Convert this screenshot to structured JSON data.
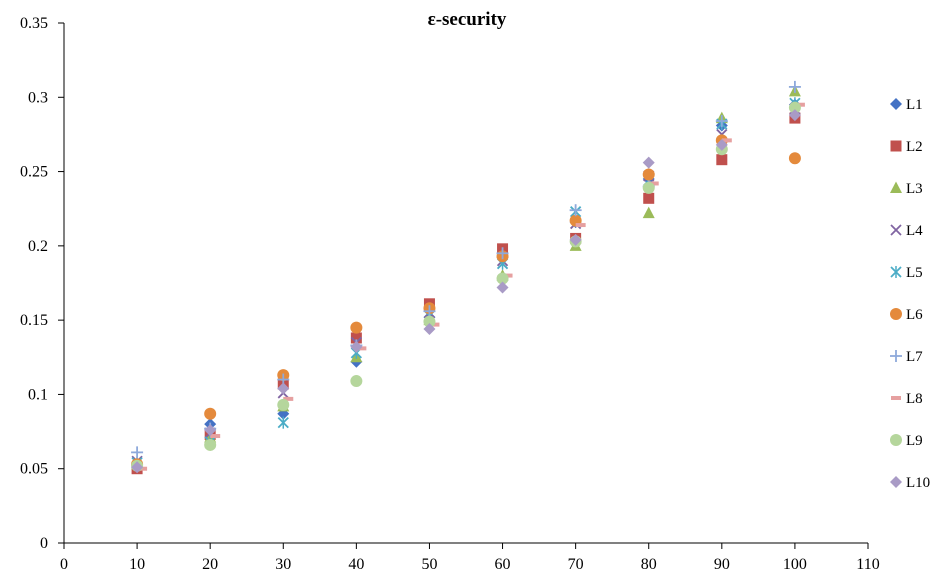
{
  "chart_data": {
    "type": "scatter",
    "title": "ε-security",
    "xlabel": "",
    "ylabel": "",
    "xlim": [
      0,
      110
    ],
    "ylim": [
      0,
      0.35
    ],
    "xticks": [
      "0",
      "10",
      "20",
      "30",
      "40",
      "50",
      "60",
      "70",
      "80",
      "90",
      "100",
      "110"
    ],
    "yticks": [
      "0",
      "0.05",
      "0.1",
      "0.15",
      "0.2",
      "0.25",
      "0.3",
      "0.35"
    ],
    "grid": false,
    "legend_position": "right",
    "x": [
      10,
      20,
      30,
      40,
      50,
      60,
      70,
      80,
      90,
      100
    ],
    "series": [
      {
        "name": "L1",
        "marker": "diamond",
        "color": "#4472C4",
        "values": [
          0.051,
          0.08,
          0.087,
          0.122,
          0.152,
          0.192,
          0.216,
          0.245,
          0.281,
          0.295
        ]
      },
      {
        "name": "L2",
        "marker": "square",
        "color": "#C0504D",
        "values": [
          0.05,
          0.073,
          0.107,
          0.138,
          0.161,
          0.198,
          0.205,
          0.232,
          0.258,
          0.286
        ]
      },
      {
        "name": "L3",
        "marker": "triangle",
        "color": "#9BBB59",
        "values": [
          0.053,
          0.071,
          0.092,
          0.125,
          0.15,
          0.18,
          0.2,
          0.222,
          0.286,
          0.304
        ]
      },
      {
        "name": "L4",
        "marker": "x",
        "color": "#8064A2",
        "values": [
          0.055,
          0.074,
          0.101,
          0.135,
          0.155,
          0.19,
          0.215,
          0.247,
          0.275,
          0.292
        ]
      },
      {
        "name": "L5",
        "marker": "star",
        "color": "#4BACC6",
        "values": [
          0.054,
          0.068,
          0.081,
          0.128,
          0.153,
          0.188,
          0.223,
          0.244,
          0.282,
          0.296
        ]
      },
      {
        "name": "L6",
        "marker": "circle",
        "color": "#E48A3C",
        "values": [
          0.053,
          0.087,
          0.113,
          0.145,
          0.158,
          0.193,
          0.217,
          0.248,
          0.271,
          0.259
        ]
      },
      {
        "name": "L7",
        "marker": "plus",
        "color": "#8EA9DB",
        "values": [
          0.061,
          0.077,
          0.11,
          0.133,
          0.156,
          0.195,
          0.224,
          0.24,
          0.284,
          0.307
        ]
      },
      {
        "name": "L8",
        "marker": "dash",
        "color": "#E6A0A0",
        "values": [
          0.05,
          0.072,
          0.097,
          0.131,
          0.147,
          0.18,
          0.214,
          0.242,
          0.271,
          0.295
        ]
      },
      {
        "name": "L9",
        "marker": "circle",
        "color": "#B5D69C",
        "values": [
          0.052,
          0.066,
          0.093,
          0.109,
          0.149,
          0.178,
          0.203,
          0.239,
          0.265,
          0.293
        ]
      },
      {
        "name": "L10",
        "marker": "diamond",
        "color": "#A99BC6",
        "values": [
          0.051,
          0.076,
          0.104,
          0.132,
          0.144,
          0.172,
          0.204,
          0.256,
          0.268,
          0.288
        ]
      }
    ]
  }
}
